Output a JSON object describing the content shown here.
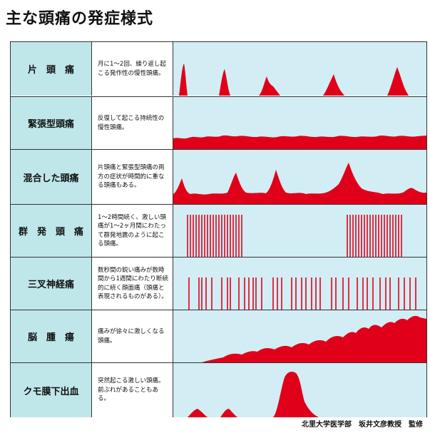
{
  "title": "主な頭痛の発症様式",
  "rows": [
    {
      "name": "片　頭　痛",
      "desc": "月に1〜2回、繰り返し起こる発作性の慢性頭痛。"
    },
    {
      "name": "緊張型頭痛",
      "desc": "反復して起こる持続性の慢性頭痛。"
    },
    {
      "name": "混合した頭痛",
      "desc": "片頭痛と緊張型頭痛の両方の症状が時間的に重なる頭痛もある。"
    },
    {
      "name": "群　発　頭　痛",
      "desc": "1〜2時間続く、激しい頭痛が1〜2ヶ月間にわたって群発地震のように起こる頭痛。"
    },
    {
      "name": "三叉神経痛",
      "desc": "数秒間の鋭い痛みが数時間から1週間にわたり断続的に続く顔面痛（頭痛と表現されるものがある）。"
    },
    {
      "name": "脳　腫　瘍",
      "desc": "痛みが徐々に激しくなる頭痛。"
    },
    {
      "name": "クモ膜下出血",
      "desc": "突然起こる激しい頭痛。前ぶれがあることもある。"
    }
  ],
  "credit": "北里大学医学部　坂井文彦教授　監修",
  "colors": {
    "pain": "#e0001a",
    "label_bg": "#bfe7ea",
    "plot_bg": "#d2edf4"
  }
}
